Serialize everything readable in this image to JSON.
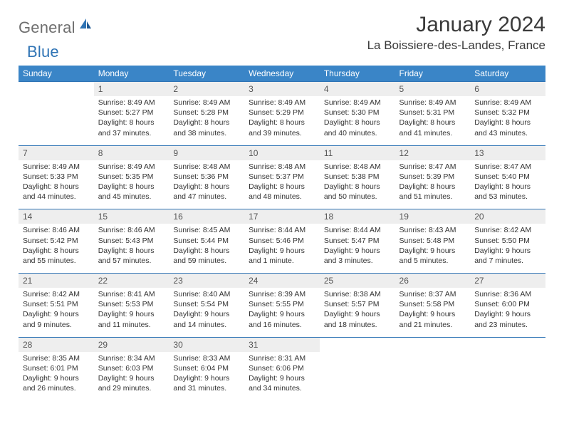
{
  "brand": {
    "general": "General",
    "blue": "Blue"
  },
  "title": "January 2024",
  "location": "La Boissiere-des-Landes, France",
  "colors": {
    "header_bg": "#3a85c7",
    "header_border": "#2f74b5",
    "daynum_bg": "#eeeeee",
    "text": "#333333"
  },
  "weekdays": [
    "Sunday",
    "Monday",
    "Tuesday",
    "Wednesday",
    "Thursday",
    "Friday",
    "Saturday"
  ],
  "weeks": [
    {
      "nums": [
        "",
        "1",
        "2",
        "3",
        "4",
        "5",
        "6"
      ],
      "cells": [
        null,
        {
          "sunrise": "Sunrise: 8:49 AM",
          "sunset": "Sunset: 5:27 PM",
          "day1": "Daylight: 8 hours",
          "day2": "and 37 minutes."
        },
        {
          "sunrise": "Sunrise: 8:49 AM",
          "sunset": "Sunset: 5:28 PM",
          "day1": "Daylight: 8 hours",
          "day2": "and 38 minutes."
        },
        {
          "sunrise": "Sunrise: 8:49 AM",
          "sunset": "Sunset: 5:29 PM",
          "day1": "Daylight: 8 hours",
          "day2": "and 39 minutes."
        },
        {
          "sunrise": "Sunrise: 8:49 AM",
          "sunset": "Sunset: 5:30 PM",
          "day1": "Daylight: 8 hours",
          "day2": "and 40 minutes."
        },
        {
          "sunrise": "Sunrise: 8:49 AM",
          "sunset": "Sunset: 5:31 PM",
          "day1": "Daylight: 8 hours",
          "day2": "and 41 minutes."
        },
        {
          "sunrise": "Sunrise: 8:49 AM",
          "sunset": "Sunset: 5:32 PM",
          "day1": "Daylight: 8 hours",
          "day2": "and 43 minutes."
        }
      ]
    },
    {
      "nums": [
        "7",
        "8",
        "9",
        "10",
        "11",
        "12",
        "13"
      ],
      "cells": [
        {
          "sunrise": "Sunrise: 8:49 AM",
          "sunset": "Sunset: 5:33 PM",
          "day1": "Daylight: 8 hours",
          "day2": "and 44 minutes."
        },
        {
          "sunrise": "Sunrise: 8:49 AM",
          "sunset": "Sunset: 5:35 PM",
          "day1": "Daylight: 8 hours",
          "day2": "and 45 minutes."
        },
        {
          "sunrise": "Sunrise: 8:48 AM",
          "sunset": "Sunset: 5:36 PM",
          "day1": "Daylight: 8 hours",
          "day2": "and 47 minutes."
        },
        {
          "sunrise": "Sunrise: 8:48 AM",
          "sunset": "Sunset: 5:37 PM",
          "day1": "Daylight: 8 hours",
          "day2": "and 48 minutes."
        },
        {
          "sunrise": "Sunrise: 8:48 AM",
          "sunset": "Sunset: 5:38 PM",
          "day1": "Daylight: 8 hours",
          "day2": "and 50 minutes."
        },
        {
          "sunrise": "Sunrise: 8:47 AM",
          "sunset": "Sunset: 5:39 PM",
          "day1": "Daylight: 8 hours",
          "day2": "and 51 minutes."
        },
        {
          "sunrise": "Sunrise: 8:47 AM",
          "sunset": "Sunset: 5:40 PM",
          "day1": "Daylight: 8 hours",
          "day2": "and 53 minutes."
        }
      ]
    },
    {
      "nums": [
        "14",
        "15",
        "16",
        "17",
        "18",
        "19",
        "20"
      ],
      "cells": [
        {
          "sunrise": "Sunrise: 8:46 AM",
          "sunset": "Sunset: 5:42 PM",
          "day1": "Daylight: 8 hours",
          "day2": "and 55 minutes."
        },
        {
          "sunrise": "Sunrise: 8:46 AM",
          "sunset": "Sunset: 5:43 PM",
          "day1": "Daylight: 8 hours",
          "day2": "and 57 minutes."
        },
        {
          "sunrise": "Sunrise: 8:45 AM",
          "sunset": "Sunset: 5:44 PM",
          "day1": "Daylight: 8 hours",
          "day2": "and 59 minutes."
        },
        {
          "sunrise": "Sunrise: 8:44 AM",
          "sunset": "Sunset: 5:46 PM",
          "day1": "Daylight: 9 hours",
          "day2": "and 1 minute."
        },
        {
          "sunrise": "Sunrise: 8:44 AM",
          "sunset": "Sunset: 5:47 PM",
          "day1": "Daylight: 9 hours",
          "day2": "and 3 minutes."
        },
        {
          "sunrise": "Sunrise: 8:43 AM",
          "sunset": "Sunset: 5:48 PM",
          "day1": "Daylight: 9 hours",
          "day2": "and 5 minutes."
        },
        {
          "sunrise": "Sunrise: 8:42 AM",
          "sunset": "Sunset: 5:50 PM",
          "day1": "Daylight: 9 hours",
          "day2": "and 7 minutes."
        }
      ]
    },
    {
      "nums": [
        "21",
        "22",
        "23",
        "24",
        "25",
        "26",
        "27"
      ],
      "cells": [
        {
          "sunrise": "Sunrise: 8:42 AM",
          "sunset": "Sunset: 5:51 PM",
          "day1": "Daylight: 9 hours",
          "day2": "and 9 minutes."
        },
        {
          "sunrise": "Sunrise: 8:41 AM",
          "sunset": "Sunset: 5:53 PM",
          "day1": "Daylight: 9 hours",
          "day2": "and 11 minutes."
        },
        {
          "sunrise": "Sunrise: 8:40 AM",
          "sunset": "Sunset: 5:54 PM",
          "day1": "Daylight: 9 hours",
          "day2": "and 14 minutes."
        },
        {
          "sunrise": "Sunrise: 8:39 AM",
          "sunset": "Sunset: 5:55 PM",
          "day1": "Daylight: 9 hours",
          "day2": "and 16 minutes."
        },
        {
          "sunrise": "Sunrise: 8:38 AM",
          "sunset": "Sunset: 5:57 PM",
          "day1": "Daylight: 9 hours",
          "day2": "and 18 minutes."
        },
        {
          "sunrise": "Sunrise: 8:37 AM",
          "sunset": "Sunset: 5:58 PM",
          "day1": "Daylight: 9 hours",
          "day2": "and 21 minutes."
        },
        {
          "sunrise": "Sunrise: 8:36 AM",
          "sunset": "Sunset: 6:00 PM",
          "day1": "Daylight: 9 hours",
          "day2": "and 23 minutes."
        }
      ]
    },
    {
      "nums": [
        "28",
        "29",
        "30",
        "31",
        "",
        "",
        ""
      ],
      "cells": [
        {
          "sunrise": "Sunrise: 8:35 AM",
          "sunset": "Sunset: 6:01 PM",
          "day1": "Daylight: 9 hours",
          "day2": "and 26 minutes."
        },
        {
          "sunrise": "Sunrise: 8:34 AM",
          "sunset": "Sunset: 6:03 PM",
          "day1": "Daylight: 9 hours",
          "day2": "and 29 minutes."
        },
        {
          "sunrise": "Sunrise: 8:33 AM",
          "sunset": "Sunset: 6:04 PM",
          "day1": "Daylight: 9 hours",
          "day2": "and 31 minutes."
        },
        {
          "sunrise": "Sunrise: 8:31 AM",
          "sunset": "Sunset: 6:06 PM",
          "day1": "Daylight: 9 hours",
          "day2": "and 34 minutes."
        },
        null,
        null,
        null
      ]
    }
  ]
}
